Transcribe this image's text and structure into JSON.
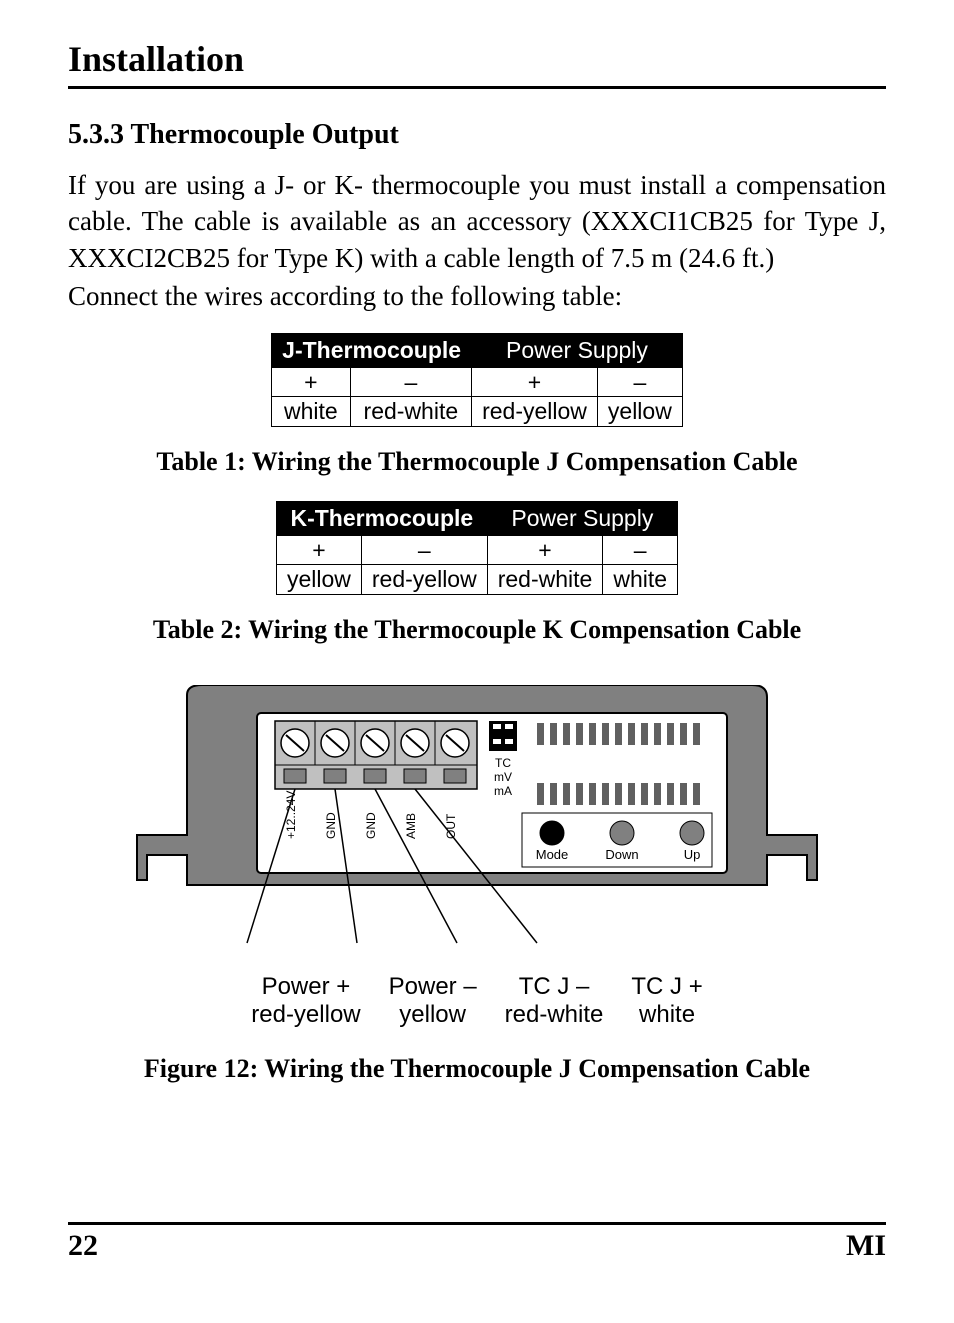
{
  "chapter_title": "Installation",
  "section_heading": "5.3.3 Thermocouple Output",
  "para1": "If you are using a J- or K- thermocouple you must install a compensation cable. The cable is available as an accessory (XXXCI1CB25 for Type J, XXXCI2CB25 for Type K) with a cable length of 7.5 m (24.6 ft.)",
  "para2": "Connect the wires according to the following table:",
  "table1": {
    "head_left": "J-Thermocouple",
    "head_right": "Power Supply",
    "signs": [
      "+",
      "–",
      "+",
      "–"
    ],
    "colors": [
      "white",
      "red-white",
      "red-yellow",
      "yellow"
    ],
    "caption": "Table 1: Wiring the Thermocouple J Compensation Cable"
  },
  "table2": {
    "head_left": "K-Thermocouple",
    "head_right": "Power Supply",
    "signs": [
      "+",
      "–",
      "+",
      "–"
    ],
    "colors": [
      "yellow",
      "red-yellow",
      "red-white",
      "white"
    ],
    "caption": "Table 2: Wiring the Thermocouple K Compensation Cable"
  },
  "diagram": {
    "terminal_labels": [
      "+12..24V",
      "GND",
      "GND",
      "AMB",
      "OUT"
    ],
    "side_labels": [
      "TC",
      "mV",
      "mA"
    ],
    "button_labels": [
      "Mode",
      "Down",
      "Up"
    ],
    "callouts": [
      {
        "line1": "Power +",
        "line2": "red-yellow"
      },
      {
        "line1": "Power –",
        "line2": "yellow"
      },
      {
        "line1": "TC J –",
        "line2": "red-white"
      },
      {
        "line1": "TC J +",
        "line2": "white"
      }
    ],
    "colors": {
      "device_fill": "#808080",
      "device_stroke": "#000000",
      "panel_fill": "#ffffff",
      "grille_fill": "#606060",
      "mode_btn": "#000000",
      "down_btn": "#808080",
      "up_btn": "#808080",
      "terminal_body": "#c0c0c0",
      "terminal_top": "#ffffff",
      "screw_fill": "#ffffff",
      "callout_line": "#000000"
    },
    "caption": "Figure 12: Wiring the Thermocouple J Compensation Cable"
  },
  "footer": {
    "page_number": "22",
    "doc_code": "MI"
  }
}
